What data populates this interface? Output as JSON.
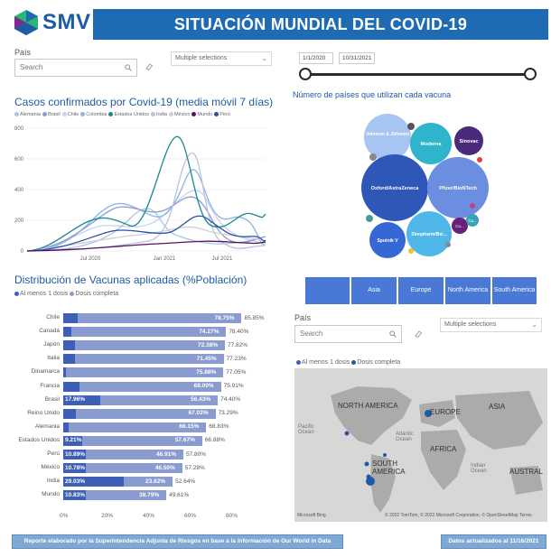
{
  "header": {
    "brand": "SMV",
    "title": "SITUACIÓN MUNDIAL DEL COVID-19"
  },
  "filters": {
    "country_label": "País",
    "search_placeholder": "Search",
    "multi_selection": "Multiple selections",
    "date_start": "1/1/2020",
    "date_end": "10/31/2021"
  },
  "cases_chart": {
    "title": "Casos confirmados por Covid-19 (media móvil 7 días)",
    "legend": [
      {
        "name": "Alemania",
        "color": "#a8c6e8"
      },
      {
        "name": "Brasil",
        "color": "#8f9bd6"
      },
      {
        "name": "Chile",
        "color": "#c5d3f0"
      },
      {
        "name": "Colombia",
        "color": "#8bb6e0"
      },
      {
        "name": "Estados Unidos",
        "color": "#1b8a8f"
      },
      {
        "name": "India",
        "color": "#b9c3dd"
      },
      {
        "name": "México",
        "color": "#d0d0d0"
      },
      {
        "name": "Mundo",
        "color": "#5a1060"
      },
      {
        "name": "Perú",
        "color": "#2c4fa8"
      }
    ],
    "yticks": [
      "800",
      "600",
      "400",
      "200",
      "0"
    ],
    "xticks": [
      "Jul 2020",
      "Jan 2021",
      "Jul 2021"
    ]
  },
  "bubble_chart": {
    "title": "Número de países que utilizan cada vacuna",
    "bubbles": [
      {
        "label": "Johnson & Johnson",
        "color": "#a7c5f2"
      },
      {
        "label": "Moderna",
        "color": "#30b4cc"
      },
      {
        "label": "Sinovac",
        "color": "#4a2a7a"
      },
      {
        "label": "Oxford/AstraZeneca",
        "color": "#2f57b8"
      },
      {
        "label": "Pfizer/BioNTech",
        "color": "#6b8ee0"
      },
      {
        "label": "Sinopharm/Bei...",
        "color": "#4fb8e8"
      },
      {
        "label": "Sputnik V",
        "color": "#3568d4"
      },
      {
        "label": "Co...",
        "color": "#6a1f7a"
      },
      {
        "label": "Ca...",
        "color": "#3aa2b5"
      }
    ]
  },
  "vaccines_chart": {
    "title": "Distribución de Vacunas aplicadas (%Población)",
    "legend": [
      {
        "name": "Al menos 1 dosis",
        "color": "#3d5fb5"
      },
      {
        "name": "Dosis completa",
        "color": "#8a9bcf"
      }
    ],
    "xticks": [
      "0%",
      "20%",
      "40%",
      "60%",
      "80%"
    ],
    "rows": [
      {
        "country": "Chile",
        "one_dose_label": "",
        "full_label": "78.75%",
        "total_label": "85.85%",
        "one_dose": 7.1,
        "full": 78.75
      },
      {
        "country": "Canadá",
        "one_dose_label": "",
        "full_label": "74.27%",
        "total_label": "78.40%",
        "one_dose": 4.13,
        "full": 74.27
      },
      {
        "country": "Japón",
        "one_dose_label": "",
        "full_label": "72.38%",
        "total_label": "77.82%",
        "one_dose": 5.44,
        "full": 72.38
      },
      {
        "country": "Italia",
        "one_dose_label": "",
        "full_label": "71.45%",
        "total_label": "77.23%",
        "one_dose": 5.78,
        "full": 71.45
      },
      {
        "country": "Dinamarca",
        "one_dose_label": "",
        "full_label": "75.88%",
        "total_label": "77.05%",
        "one_dose": 1.17,
        "full": 75.88
      },
      {
        "country": "Francia",
        "one_dose_label": "",
        "full_label": "68.00%",
        "total_label": "75.91%",
        "one_dose": 7.91,
        "full": 68.0
      },
      {
        "country": "Brasil",
        "one_dose_label": "17.96%",
        "full_label": "56.43%",
        "total_label": "74.40%",
        "one_dose": 17.96,
        "full": 56.43
      },
      {
        "country": "Reino Unido",
        "one_dose_label": "",
        "full_label": "67.02%",
        "total_label": "73.29%",
        "one_dose": 6.27,
        "full": 67.02
      },
      {
        "country": "Alemania",
        "one_dose_label": "",
        "full_label": "66.15%",
        "total_label": "68.83%",
        "one_dose": 2.68,
        "full": 66.15
      },
      {
        "country": "Estados Unidos",
        "one_dose_label": "9.21%",
        "full_label": "57.67%",
        "total_label": "66.88%",
        "one_dose": 9.21,
        "full": 57.67
      },
      {
        "country": "Perú",
        "one_dose_label": "10.89%",
        "full_label": "46.91%",
        "total_label": "57.80%",
        "one_dose": 10.89,
        "full": 46.91
      },
      {
        "country": "México",
        "one_dose_label": "10.78%",
        "full_label": "46.50%",
        "total_label": "57.28%",
        "one_dose": 10.78,
        "full": 46.5
      },
      {
        "country": "India",
        "one_dose_label": "29.03%",
        "full_label": "23.62%",
        "total_label": "52.64%",
        "one_dose": 29.03,
        "full": 23.62
      },
      {
        "country": "Mundo",
        "one_dose_label": "10.83%",
        "full_label": "38.79%",
        "total_label": "49.61%",
        "one_dose": 10.83,
        "full": 38.79
      }
    ]
  },
  "region_slicer": [
    "Asia",
    "Europe",
    "North America",
    "South America"
  ],
  "map": {
    "title": "Al menos 1 dosis  Dosis completa",
    "legend": [
      {
        "name": "Al menos 1 dosis",
        "color": "#3d5fb5"
      },
      {
        "name": "Dosis completa",
        "color": "#1f5aa6"
      }
    ],
    "labels": {
      "north_america": "NORTH AMERICA",
      "europe": "EUROPE",
      "asia": "ASIA",
      "africa": "AFRICA",
      "south_america": "SOUTH AMERICA",
      "pacific": "Pacific Ocean",
      "atlantic": "Atlantic Ocean",
      "indian": "Indian Ocean",
      "austral": "AUSTRAL"
    },
    "attribution": "© 2022 TomTom, © 2022 Microsoft Corporation, © OpenStreetMap  Terms",
    "bing": "Microsoft Bing"
  },
  "footer": {
    "left": "Reporte elaborado por la Superintendencia Adjunta de Riesgos en base a la información de Our World in Data",
    "right": "Datos actualizados al 11/16/2021"
  }
}
